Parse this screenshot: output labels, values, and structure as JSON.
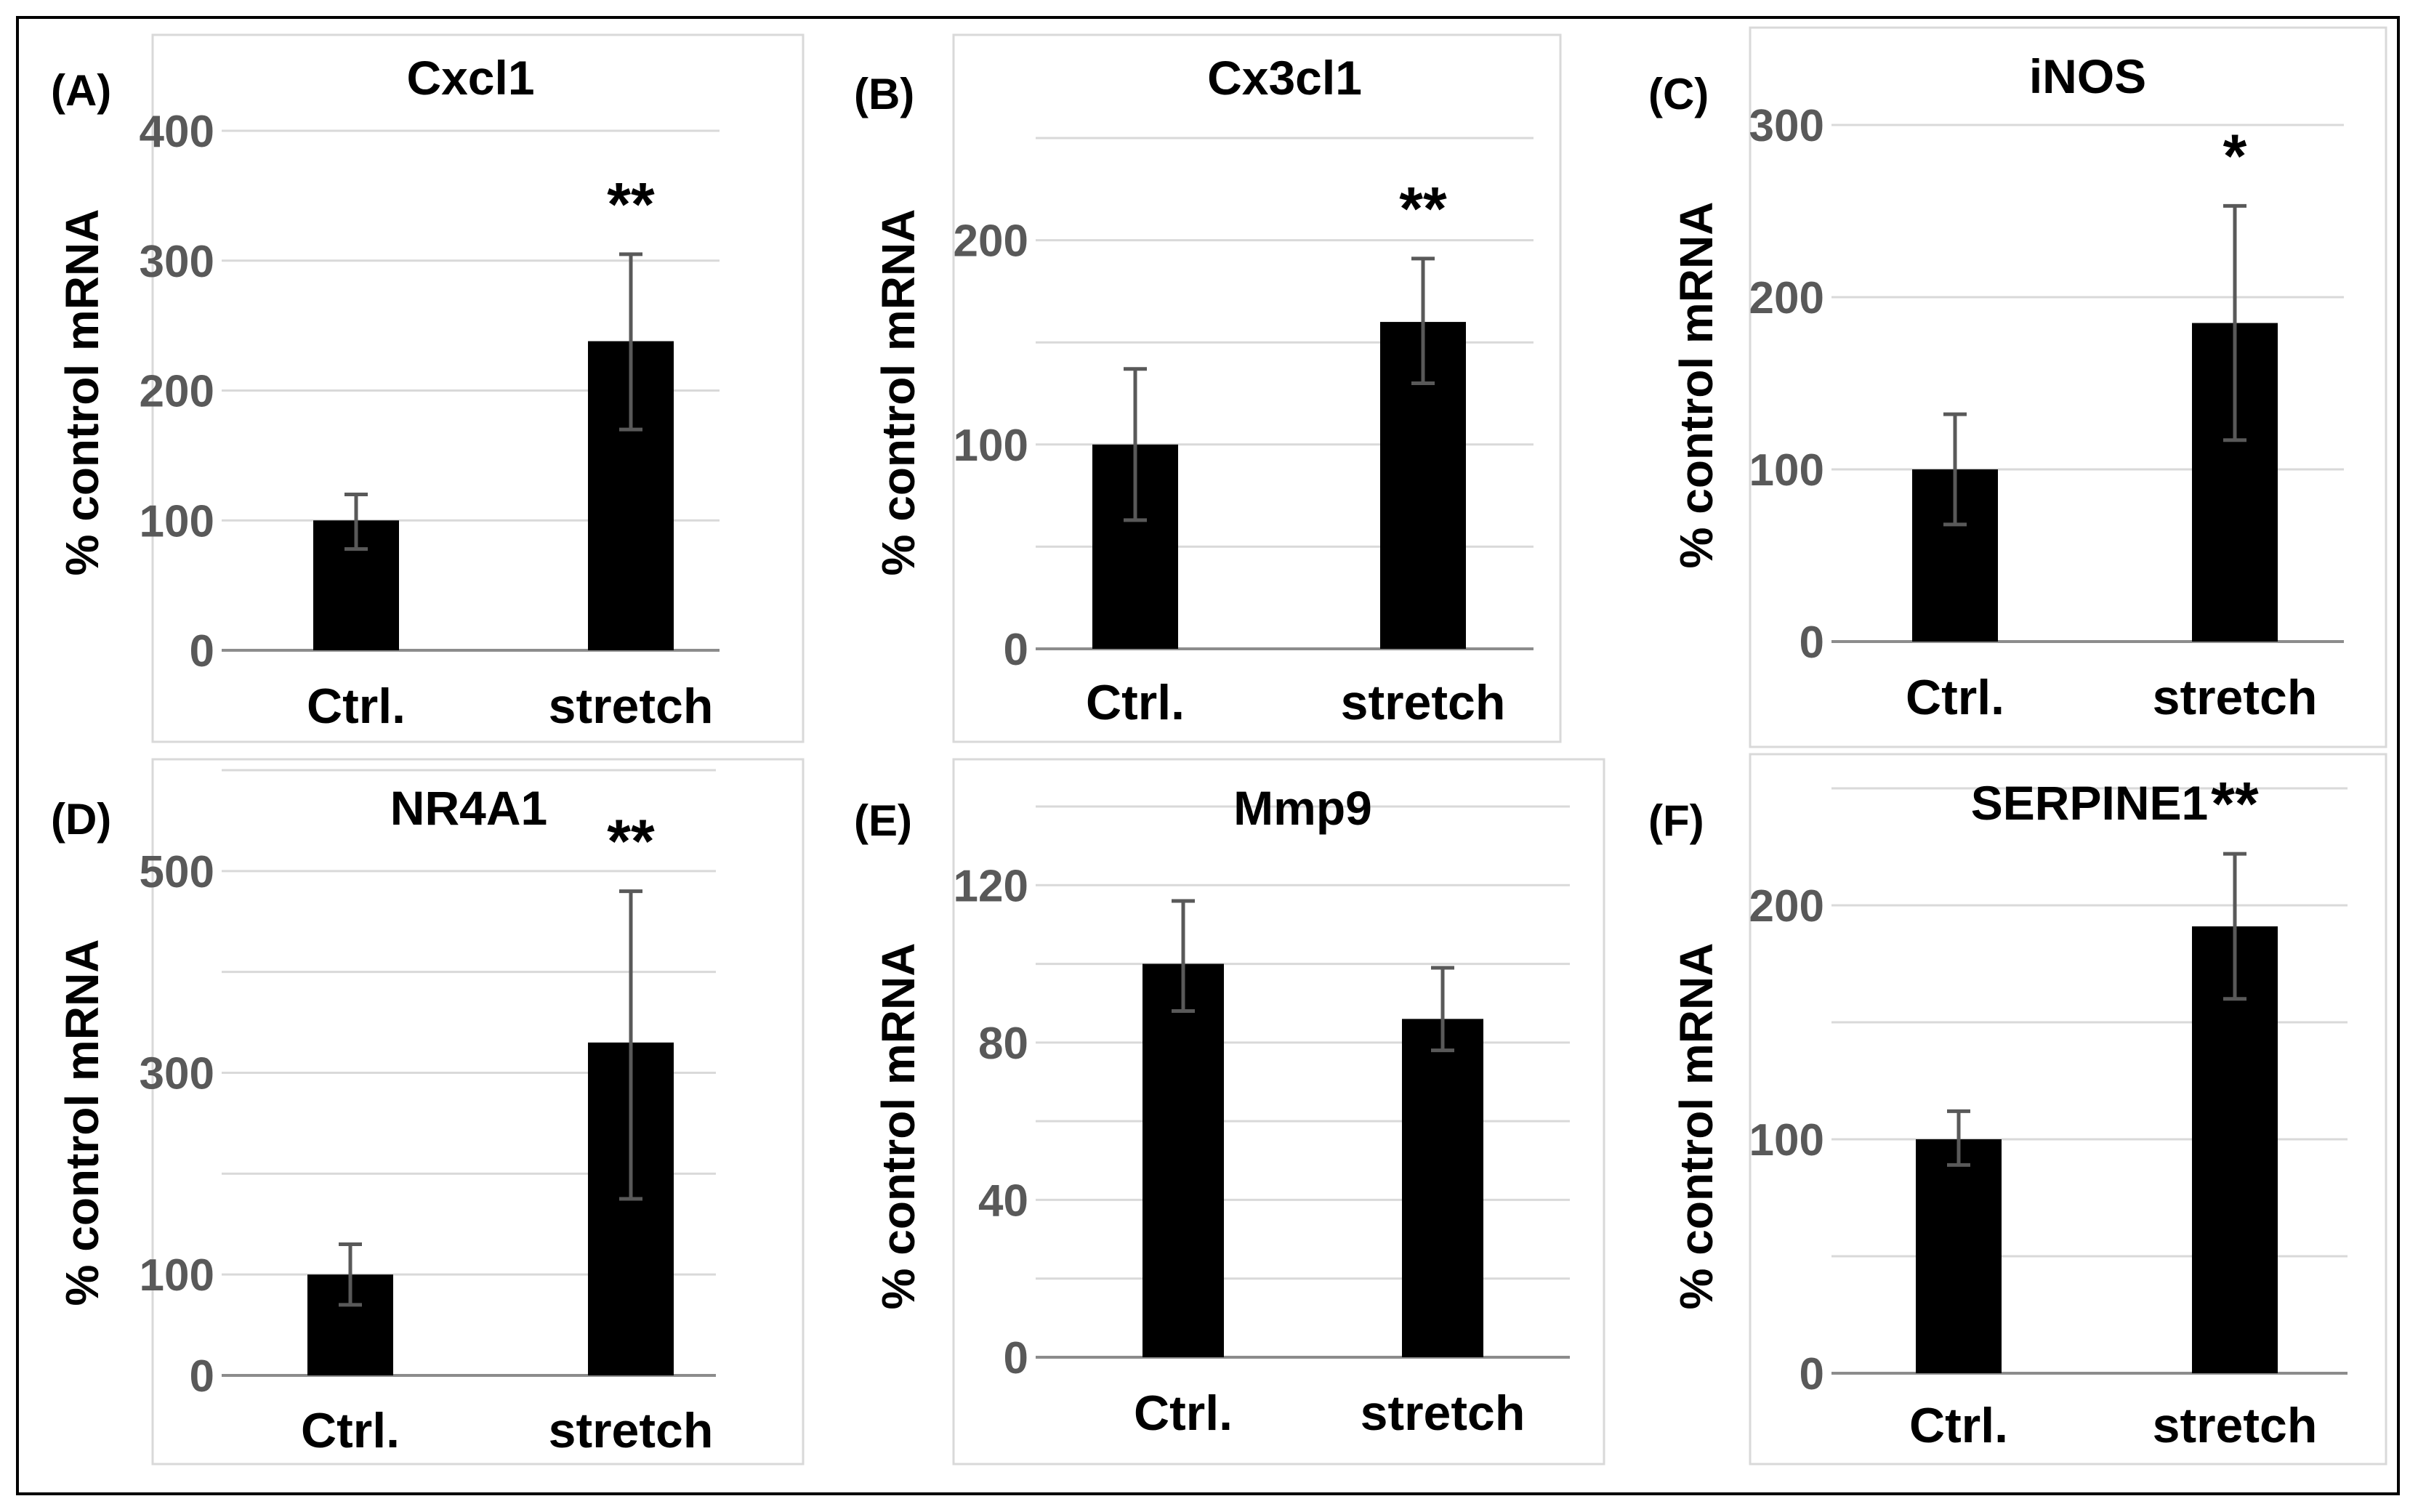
{
  "figure": {
    "y_axis_label": "% control mRNA",
    "categories": [
      "Ctrl.",
      "stretch"
    ]
  },
  "chart_data": [
    {
      "panel": "(A)",
      "type": "bar",
      "title": "Cxcl1",
      "ylabel": "% control mRNA",
      "categories": [
        "Ctrl.",
        "stretch"
      ],
      "values": [
        100,
        238
      ],
      "error": [
        [
          78,
          120
        ],
        [
          170,
          305
        ]
      ],
      "ylim": [
        0,
        400
      ],
      "ticks": [
        0,
        100,
        200,
        300,
        400
      ],
      "ticks_shown": [
        0,
        100,
        200,
        300,
        400
      ],
      "gridlines": [
        100,
        200,
        300,
        400
      ],
      "significance": [
        "",
        "**"
      ]
    },
    {
      "panel": "(B)",
      "type": "bar",
      "title": "Cx3cl1",
      "ylabel": "% control mRNA",
      "categories": [
        "Ctrl.",
        "stretch"
      ],
      "values": [
        100,
        160
      ],
      "error": [
        [
          63,
          137
        ],
        [
          130,
          191
        ]
      ],
      "ylim": [
        0,
        250
      ],
      "ticks": [
        0,
        50,
        100,
        150,
        200,
        250
      ],
      "ticks_shown": [
        0,
        100,
        200
      ],
      "gridlines": [
        50,
        100,
        150,
        200,
        250
      ],
      "significance": [
        "",
        "**"
      ]
    },
    {
      "panel": "(C)",
      "type": "bar",
      "title": "iNOS",
      "ylabel": "% control mRNA",
      "categories": [
        "Ctrl.",
        "stretch"
      ],
      "values": [
        100,
        185
      ],
      "error": [
        [
          68,
          132
        ],
        [
          117,
          253
        ]
      ],
      "ylim": [
        0,
        300
      ],
      "ticks": [
        0,
        100,
        200,
        300
      ],
      "ticks_shown": [
        0,
        100,
        200,
        300
      ],
      "gridlines": [
        100,
        200,
        300
      ],
      "significance": [
        "",
        "*"
      ]
    },
    {
      "panel": "(D)",
      "type": "bar",
      "title": "NR4A1",
      "ylabel": "% control mRNA",
      "categories": [
        "Ctrl.",
        "stretch"
      ],
      "values": [
        100,
        330
      ],
      "error": [
        [
          70,
          130
        ],
        [
          175,
          480
        ]
      ],
      "ylim": [
        0,
        600
      ],
      "ticks": [
        0,
        100,
        200,
        300,
        400,
        500,
        600
      ],
      "ticks_shown": [
        0,
        100,
        300,
        500
      ],
      "gridlines": [
        100,
        200,
        300,
        400,
        500,
        600
      ],
      "significance": [
        "",
        "**"
      ]
    },
    {
      "panel": "(E)",
      "type": "bar",
      "title": "Mmp9",
      "ylabel": "% control mRNA",
      "categories": [
        "Ctrl.",
        "stretch"
      ],
      "values": [
        100,
        86
      ],
      "error": [
        [
          88,
          116
        ],
        [
          78,
          99
        ]
      ],
      "ylim": [
        0,
        140
      ],
      "ticks": [
        0,
        20,
        40,
        60,
        80,
        100,
        120,
        140
      ],
      "ticks_shown": [
        0,
        40,
        80,
        120
      ],
      "gridlines": [
        20,
        40,
        60,
        80,
        100,
        120,
        140
      ],
      "significance": [
        "",
        ""
      ]
    },
    {
      "panel": "(F)",
      "type": "bar",
      "title": "SERPINE1",
      "ylabel": "% control mRNA",
      "categories": [
        "Ctrl.",
        "stretch"
      ],
      "values": [
        100,
        191
      ],
      "error": [
        [
          89,
          112
        ],
        [
          160,
          222
        ]
      ],
      "ylim": [
        0,
        250
      ],
      "ticks": [
        0,
        50,
        100,
        150,
        200,
        250
      ],
      "ticks_shown": [
        0,
        100,
        200
      ],
      "gridlines": [
        50,
        100,
        150,
        200,
        250
      ],
      "significance": [
        "",
        "**"
      ]
    }
  ]
}
